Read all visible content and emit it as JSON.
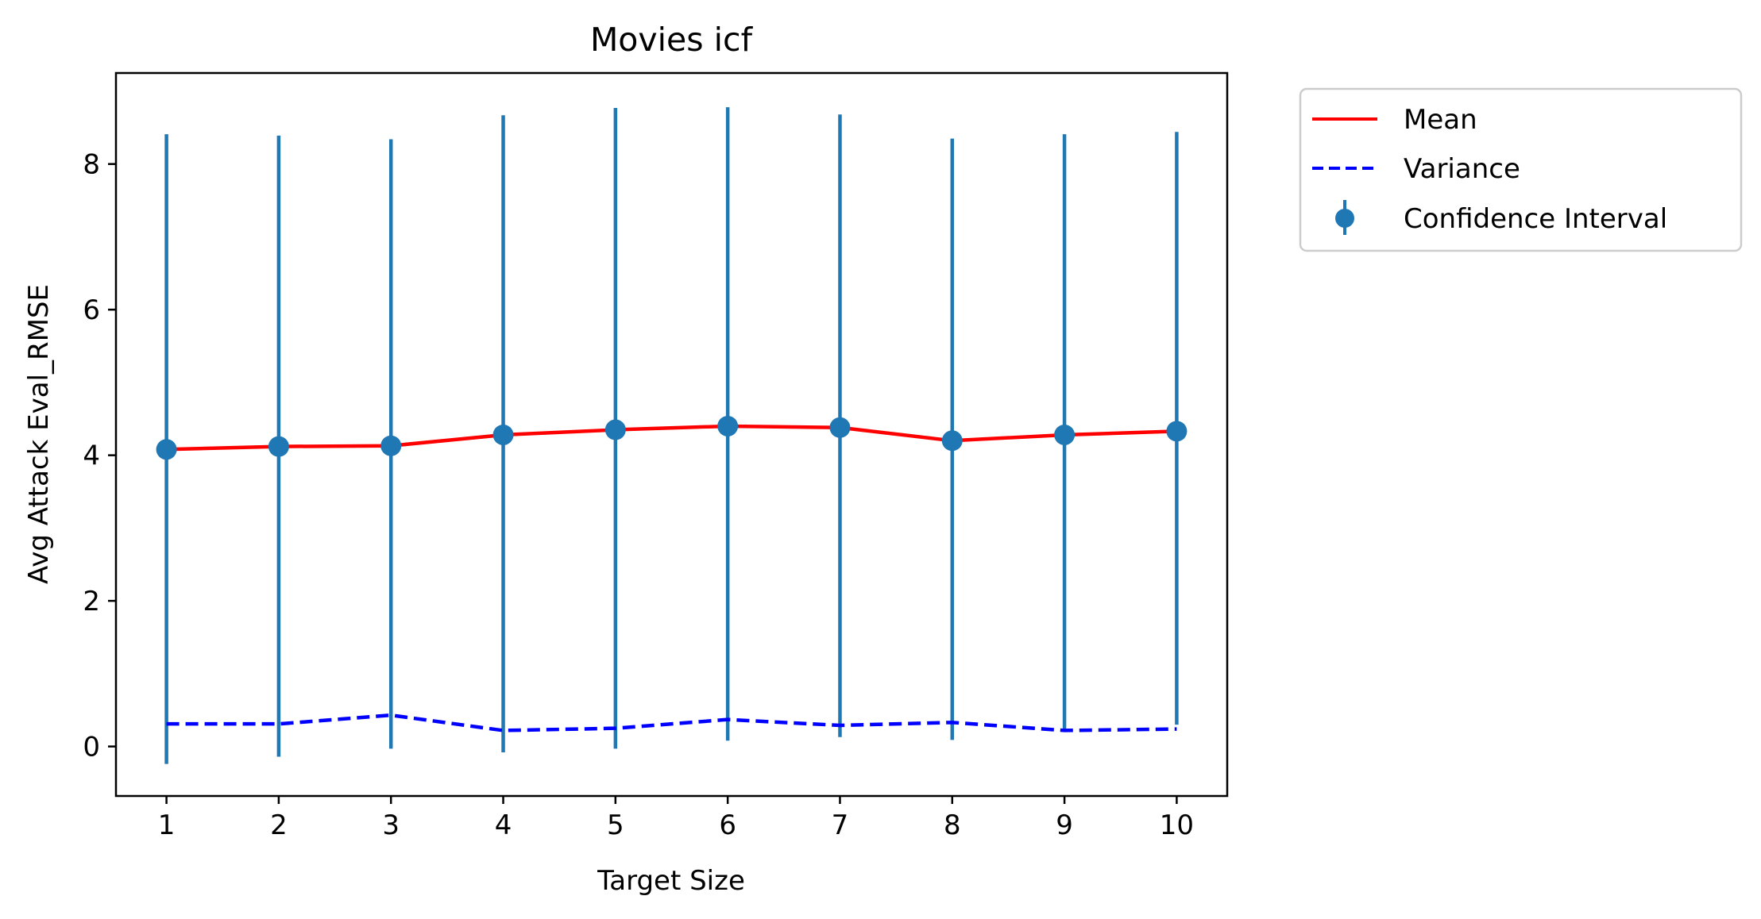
{
  "chart_data": {
    "type": "line",
    "title": "Movies icf",
    "xlabel": "Target Size",
    "ylabel": "Avg Attack Eval_RMSE",
    "x": [
      1,
      2,
      3,
      4,
      5,
      6,
      7,
      8,
      9,
      10
    ],
    "xlim": [
      0.55,
      10.45
    ],
    "ylim": [
      -0.68,
      9.25
    ],
    "xticks": [
      1,
      2,
      3,
      4,
      5,
      6,
      7,
      8,
      9,
      10
    ],
    "yticks": [
      0,
      2,
      4,
      6,
      8
    ],
    "grid": false,
    "legend_position": "outside-top-right",
    "series": [
      {
        "name": "Mean",
        "kind": "line",
        "color": "#ff0000",
        "style": "solid",
        "values": [
          4.08,
          4.12,
          4.13,
          4.28,
          4.35,
          4.4,
          4.38,
          4.2,
          4.28,
          4.33
        ]
      },
      {
        "name": "Variance",
        "kind": "line",
        "color": "#0000ff",
        "style": "dashed",
        "values": [
          0.31,
          0.31,
          0.43,
          0.22,
          0.25,
          0.37,
          0.29,
          0.33,
          0.22,
          0.24
        ]
      },
      {
        "name": "Confidence Interval",
        "kind": "errorbar",
        "color": "#1f77b4",
        "values": [
          4.08,
          4.12,
          4.13,
          4.28,
          4.35,
          4.4,
          4.38,
          4.2,
          4.28,
          4.33
        ],
        "lower": [
          -0.24,
          -0.14,
          -0.03,
          -0.08,
          -0.03,
          0.08,
          0.13,
          0.09,
          0.22,
          0.3
        ],
        "upper": [
          8.41,
          8.39,
          8.34,
          8.67,
          8.77,
          8.78,
          8.68,
          8.35,
          8.41,
          8.44
        ]
      }
    ]
  }
}
